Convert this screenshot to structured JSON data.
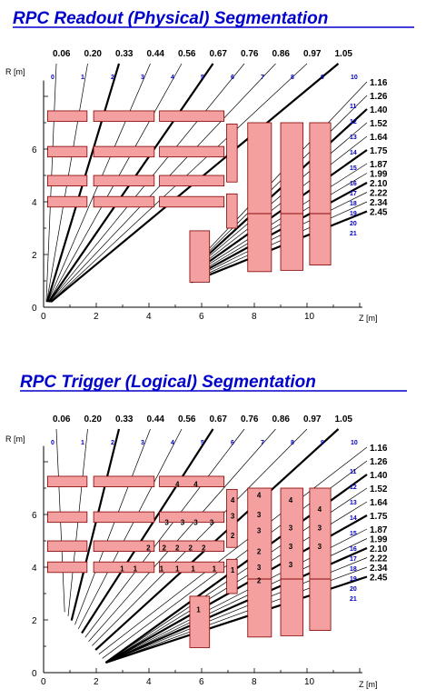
{
  "panels": [
    {
      "title": "RPC Readout (Physical) Segmentation",
      "xlabel": "Z [m]",
      "ylabel": "R [m]",
      "x_ticks": [
        "0",
        "2",
        "4",
        "6",
        "8",
        "10"
      ],
      "y_ticks": [
        "0",
        "2",
        "4",
        "6"
      ],
      "eta_top": [
        "0.06",
        "0.20",
        "0.33",
        "0.44",
        "0.56",
        "0.67",
        "0.76",
        "0.86",
        "0.97",
        "1.05"
      ],
      "eta_right": [
        "1.16",
        "1.26",
        "1.40",
        "1.52",
        "1.64",
        "1.75",
        "1.87",
        "1.99",
        "2.10",
        "2.22",
        "2.34",
        "2.45"
      ],
      "sector_numbers": [
        "0",
        "1",
        "2",
        "3",
        "4",
        "5",
        "6",
        "7",
        "8",
        "9",
        "10",
        "11",
        "12",
        "13",
        "14",
        "15",
        "16",
        "17",
        "18",
        "19",
        "20",
        "21"
      ],
      "cell_labels": []
    },
    {
      "title": "RPC Trigger (Logical) Segmentation",
      "xlabel": "Z [m]",
      "ylabel": "R [m]",
      "x_ticks": [
        "0",
        "2",
        "4",
        "6",
        "8",
        "10"
      ],
      "y_ticks": [
        "0",
        "2",
        "4",
        "6"
      ],
      "eta_top": [
        "0.06",
        "0.20",
        "0.33",
        "0.44",
        "0.56",
        "0.67",
        "0.76",
        "0.86",
        "0.97",
        "1.05"
      ],
      "eta_right": [
        "1.16",
        "1.26",
        "1.40",
        "1.52",
        "1.64",
        "1.75",
        "1.87",
        "1.99",
        "2.10",
        "2.22",
        "2.34",
        "2.45"
      ],
      "sector_numbers": [
        "0",
        "1",
        "2",
        "3",
        "4",
        "5",
        "6",
        "7",
        "8",
        "9",
        "10",
        "11",
        "12",
        "13",
        "14",
        "15",
        "16",
        "17",
        "18",
        "19",
        "20",
        "21"
      ],
      "cell_labels": [
        {
          "text": "4",
          "z": 5.0,
          "r": 7.15
        },
        {
          "text": "4",
          "z": 5.7,
          "r": 7.15
        },
        {
          "text": "4",
          "z": 7.1,
          "r": 6.55
        },
        {
          "text": "4",
          "z": 8.1,
          "r": 6.75
        },
        {
          "text": "4",
          "z": 9.3,
          "r": 6.55
        },
        {
          "text": "4",
          "z": 10.4,
          "r": 6.2
        },
        {
          "text": "3",
          "z": 4.6,
          "r": 5.7
        },
        {
          "text": "3",
          "z": 5.2,
          "r": 5.7
        },
        {
          "text": "3",
          "z": 5.7,
          "r": 5.7
        },
        {
          "text": "3",
          "z": 6.3,
          "r": 5.7
        },
        {
          "text": "3",
          "z": 7.1,
          "r": 5.95
        },
        {
          "text": "3",
          "z": 8.1,
          "r": 6.0
        },
        {
          "text": "3",
          "z": 9.3,
          "r": 5.5
        },
        {
          "text": "3",
          "z": 10.4,
          "r": 5.5
        },
        {
          "text": "3",
          "z": 8.1,
          "r": 5.4
        },
        {
          "text": "3",
          "z": 9.3,
          "r": 4.8
        },
        {
          "text": "3",
          "z": 10.4,
          "r": 4.8
        },
        {
          "text": "2",
          "z": 3.9,
          "r": 4.75
        },
        {
          "text": "2",
          "z": 4.5,
          "r": 4.75
        },
        {
          "text": "2",
          "z": 5.0,
          "r": 4.75
        },
        {
          "text": "2",
          "z": 5.5,
          "r": 4.75
        },
        {
          "text": "2",
          "z": 6.0,
          "r": 4.75
        },
        {
          "text": "2",
          "z": 7.1,
          "r": 5.2
        },
        {
          "text": "2",
          "z": 8.1,
          "r": 4.6
        },
        {
          "text": "2",
          "z": 8.1,
          "r": 3.5
        },
        {
          "text": "3",
          "z": 9.3,
          "r": 4.1
        },
        {
          "text": "3",
          "z": 8.1,
          "r": 4.0
        },
        {
          "text": "1",
          "z": 2.9,
          "r": 3.95
        },
        {
          "text": "1",
          "z": 3.4,
          "r": 3.95
        },
        {
          "text": "1",
          "z": 4.4,
          "r": 3.95
        },
        {
          "text": "1",
          "z": 5.0,
          "r": 3.95
        },
        {
          "text": "1",
          "z": 5.6,
          "r": 3.95
        },
        {
          "text": "1",
          "z": 6.4,
          "r": 3.95
        },
        {
          "text": "1",
          "z": 7.1,
          "r": 3.9
        },
        {
          "text": "1",
          "z": 5.8,
          "r": 2.4
        }
      ]
    }
  ],
  "colors": {
    "title": "#0000cc",
    "chamber_fill": "#f4a0a0",
    "chamber_stroke": "#800000",
    "line": "#000000",
    "sector_label": "#0000bb"
  }
}
